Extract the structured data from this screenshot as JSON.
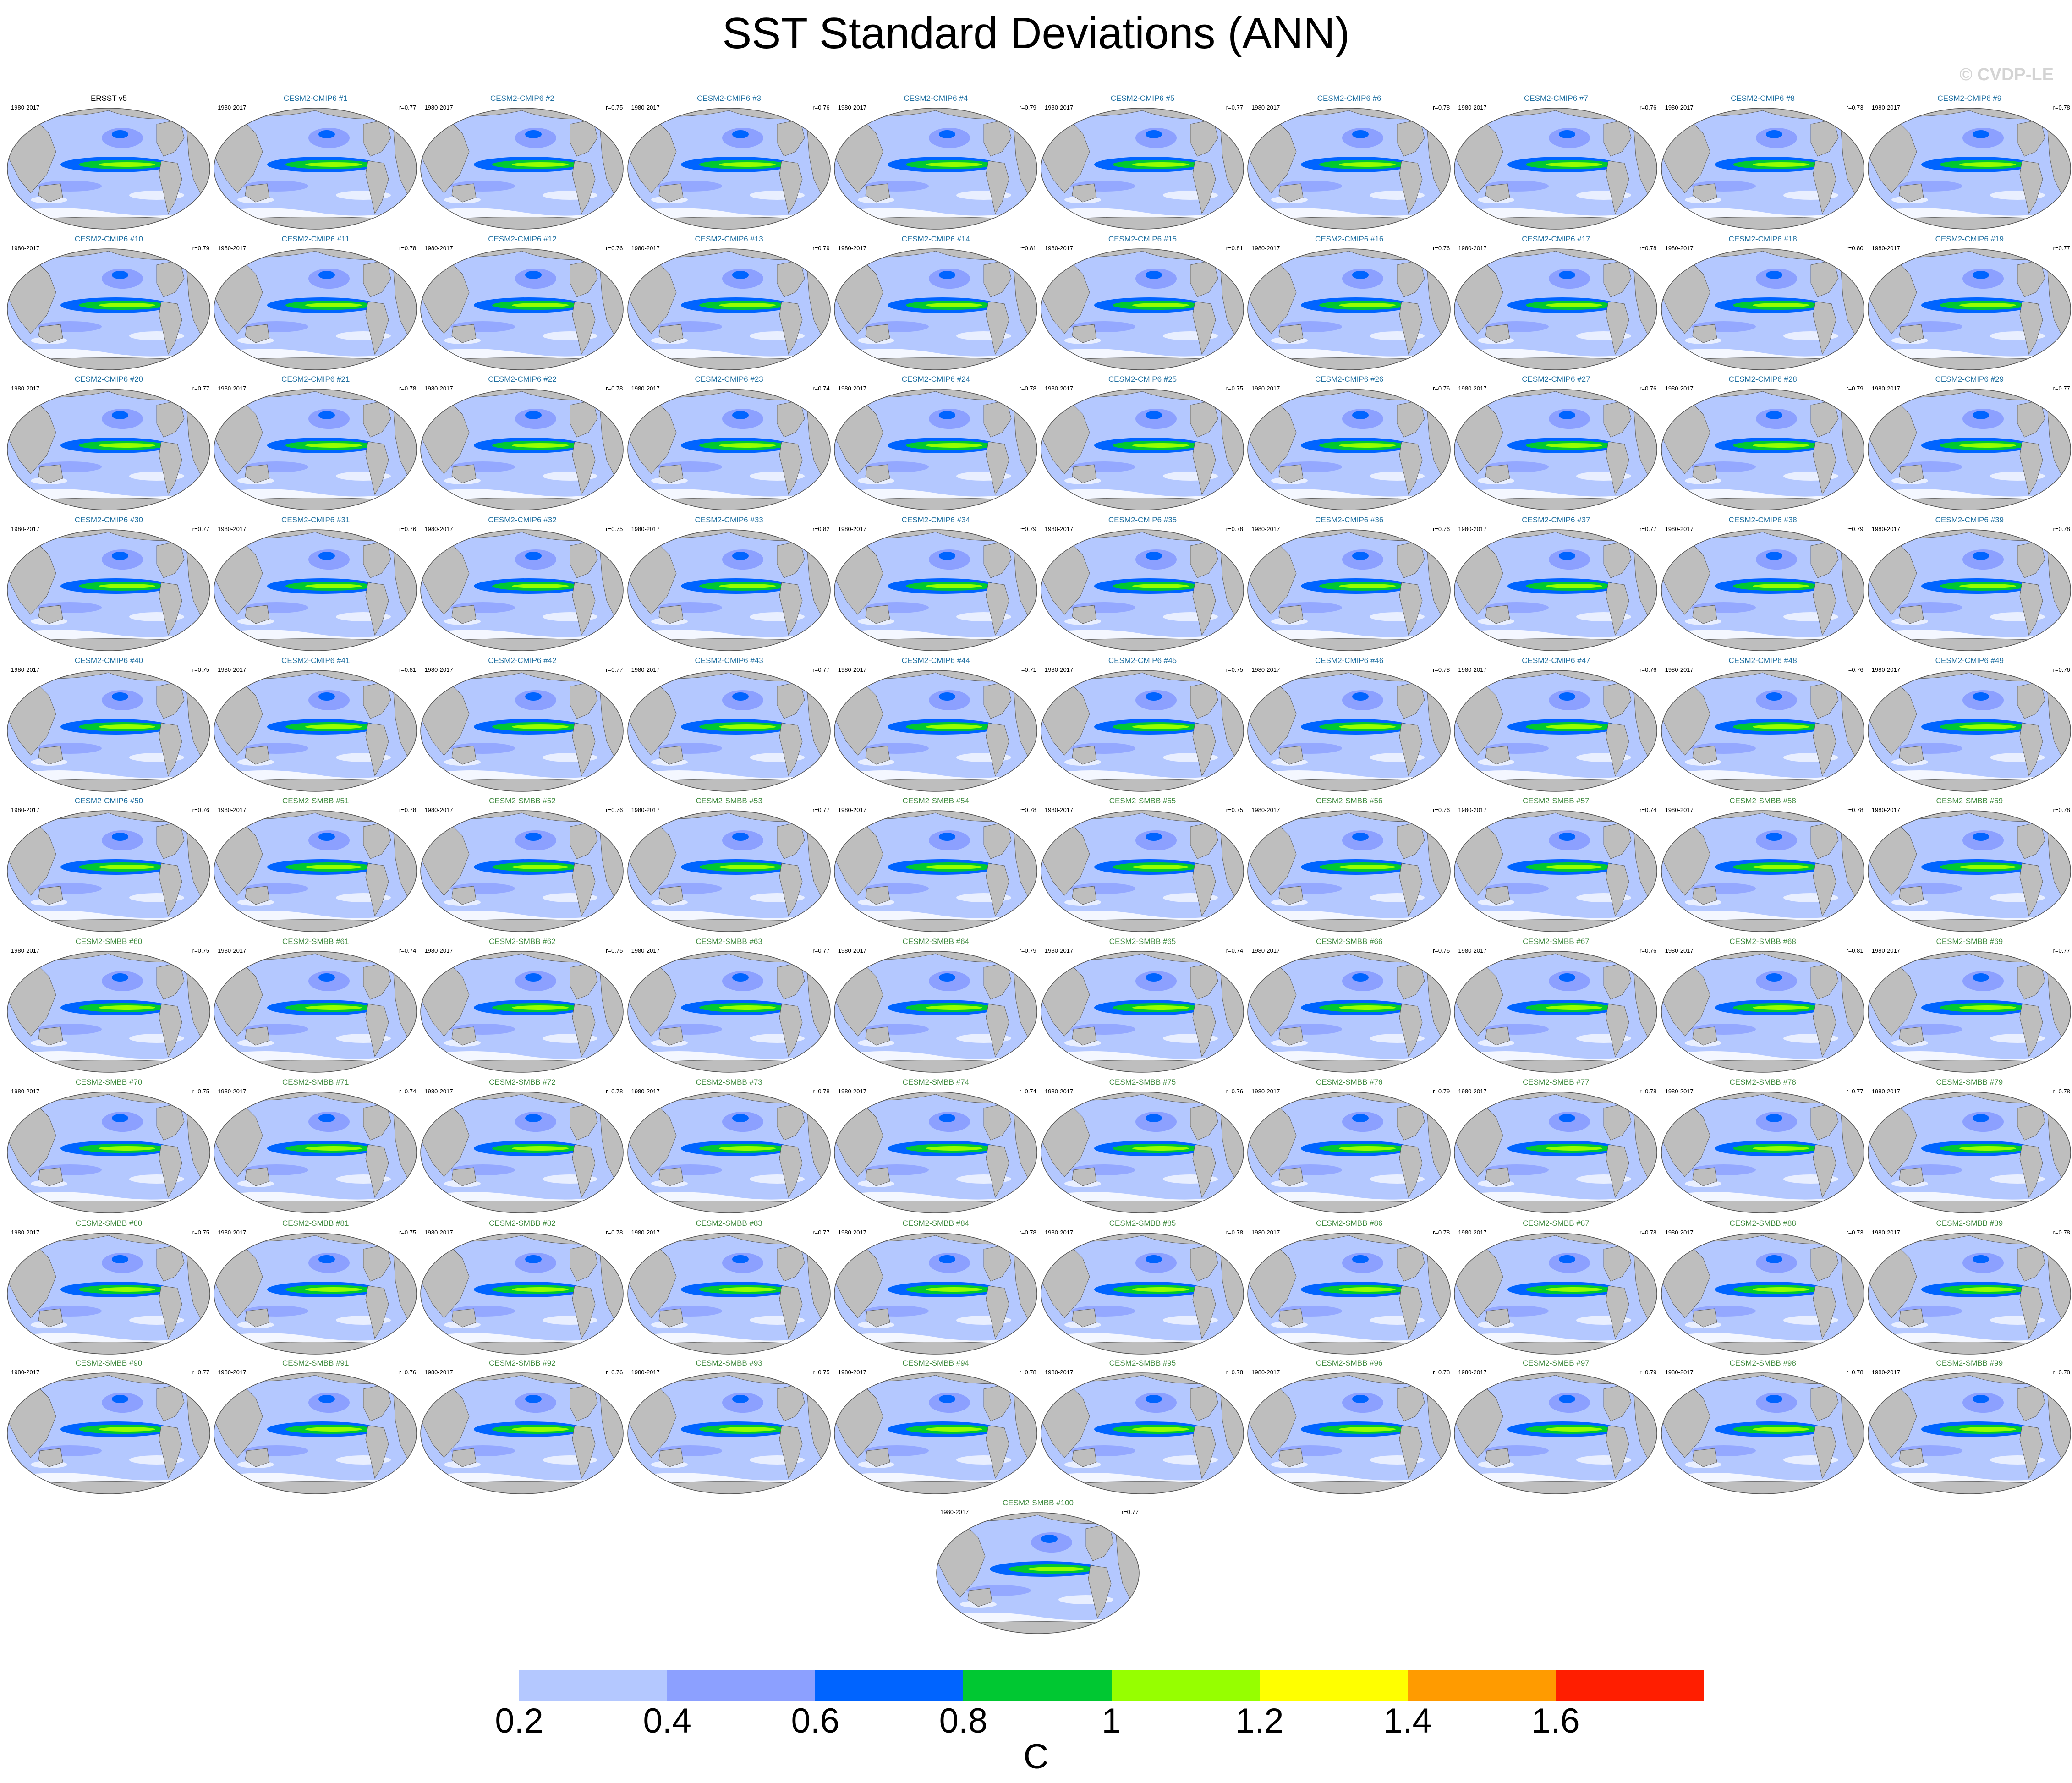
{
  "title": "SST Standard Deviations (ANN)",
  "watermark": "© CVDP-LE",
  "units": "C",
  "colors": {
    "cmip6_title": "#1f6fa0",
    "smbb_title": "#3f8a3f",
    "obs_title": "#000000",
    "land": "#bebebe",
    "ocean_low": "#b4c8ff"
  },
  "panels": [
    {
      "name": "ERSST v5",
      "period": "1980-2017",
      "r": ""
    },
    {
      "name": "CESM2-CMIP6 #1",
      "period": "1980-2017",
      "r": "r=0.77"
    },
    {
      "name": "CESM2-CMIP6 #2",
      "period": "1980-2017",
      "r": "r=0.75"
    },
    {
      "name": "CESM2-CMIP6 #3",
      "period": "1980-2017",
      "r": "r=0.76"
    },
    {
      "name": "CESM2-CMIP6 #4",
      "period": "1980-2017",
      "r": "r=0.79"
    },
    {
      "name": "CESM2-CMIP6 #5",
      "period": "1980-2017",
      "r": "r=0.77"
    },
    {
      "name": "CESM2-CMIP6 #6",
      "period": "1980-2017",
      "r": "r=0.78"
    },
    {
      "name": "CESM2-CMIP6 #7",
      "period": "1980-2017",
      "r": "r=0.76"
    },
    {
      "name": "CESM2-CMIP6 #8",
      "period": "1980-2017",
      "r": "r=0.73"
    },
    {
      "name": "CESM2-CMIP6 #9",
      "period": "1980-2017",
      "r": "r=0.78"
    },
    {
      "name": "CESM2-CMIP6 #10",
      "period": "1980-2017",
      "r": "r=0.79"
    },
    {
      "name": "CESM2-CMIP6 #11",
      "period": "1980-2017",
      "r": "r=0.78"
    },
    {
      "name": "CESM2-CMIP6 #12",
      "period": "1980-2017",
      "r": "r=0.76"
    },
    {
      "name": "CESM2-CMIP6 #13",
      "period": "1980-2017",
      "r": "r=0.79"
    },
    {
      "name": "CESM2-CMIP6 #14",
      "period": "1980-2017",
      "r": "r=0.81"
    },
    {
      "name": "CESM2-CMIP6 #15",
      "period": "1980-2017",
      "r": "r=0.81"
    },
    {
      "name": "CESM2-CMIP6 #16",
      "period": "1980-2017",
      "r": "r=0.76"
    },
    {
      "name": "CESM2-CMIP6 #17",
      "period": "1980-2017",
      "r": "r=0.78"
    },
    {
      "name": "CESM2-CMIP6 #18",
      "period": "1980-2017",
      "r": "r=0.80"
    },
    {
      "name": "CESM2-CMIP6 #19",
      "period": "1980-2017",
      "r": "r=0.77"
    },
    {
      "name": "CESM2-CMIP6 #20",
      "period": "1980-2017",
      "r": "r=0.77"
    },
    {
      "name": "CESM2-CMIP6 #21",
      "period": "1980-2017",
      "r": "r=0.78"
    },
    {
      "name": "CESM2-CMIP6 #22",
      "period": "1980-2017",
      "r": "r=0.78"
    },
    {
      "name": "CESM2-CMIP6 #23",
      "period": "1980-2017",
      "r": "r=0.74"
    },
    {
      "name": "CESM2-CMIP6 #24",
      "period": "1980-2017",
      "r": "r=0.78"
    },
    {
      "name": "CESM2-CMIP6 #25",
      "period": "1980-2017",
      "r": "r=0.75"
    },
    {
      "name": "CESM2-CMIP6 #26",
      "period": "1980-2017",
      "r": "r=0.76"
    },
    {
      "name": "CESM2-CMIP6 #27",
      "period": "1980-2017",
      "r": "r=0.76"
    },
    {
      "name": "CESM2-CMIP6 #28",
      "period": "1980-2017",
      "r": "r=0.79"
    },
    {
      "name": "CESM2-CMIP6 #29",
      "period": "1980-2017",
      "r": "r=0.77"
    },
    {
      "name": "CESM2-CMIP6 #30",
      "period": "1980-2017",
      "r": "r=0.77"
    },
    {
      "name": "CESM2-CMIP6 #31",
      "period": "1980-2017",
      "r": "r=0.76"
    },
    {
      "name": "CESM2-CMIP6 #32",
      "period": "1980-2017",
      "r": "r=0.75"
    },
    {
      "name": "CESM2-CMIP6 #33",
      "period": "1980-2017",
      "r": "r=0.82"
    },
    {
      "name": "CESM2-CMIP6 #34",
      "period": "1980-2017",
      "r": "r=0.79"
    },
    {
      "name": "CESM2-CMIP6 #35",
      "period": "1980-2017",
      "r": "r=0.78"
    },
    {
      "name": "CESM2-CMIP6 #36",
      "period": "1980-2017",
      "r": "r=0.76"
    },
    {
      "name": "CESM2-CMIP6 #37",
      "period": "1980-2017",
      "r": "r=0.77"
    },
    {
      "name": "CESM2-CMIP6 #38",
      "period": "1980-2017",
      "r": "r=0.79"
    },
    {
      "name": "CESM2-CMIP6 #39",
      "period": "1980-2017",
      "r": "r=0.78"
    },
    {
      "name": "CESM2-CMIP6 #40",
      "period": "1980-2017",
      "r": "r=0.75"
    },
    {
      "name": "CESM2-CMIP6 #41",
      "period": "1980-2017",
      "r": "r=0.81"
    },
    {
      "name": "CESM2-CMIP6 #42",
      "period": "1980-2017",
      "r": "r=0.77"
    },
    {
      "name": "CESM2-CMIP6 #43",
      "period": "1980-2017",
      "r": "r=0.77"
    },
    {
      "name": "CESM2-CMIP6 #44",
      "period": "1980-2017",
      "r": "r=0.71"
    },
    {
      "name": "CESM2-CMIP6 #45",
      "period": "1980-2017",
      "r": "r=0.75"
    },
    {
      "name": "CESM2-CMIP6 #46",
      "period": "1980-2017",
      "r": "r=0.78"
    },
    {
      "name": "CESM2-CMIP6 #47",
      "period": "1980-2017",
      "r": "r=0.76"
    },
    {
      "name": "CESM2-CMIP6 #48",
      "period": "1980-2017",
      "r": "r=0.76"
    },
    {
      "name": "CESM2-CMIP6 #49",
      "period": "1980-2017",
      "r": "r=0.76"
    },
    {
      "name": "CESM2-CMIP6 #50",
      "period": "1980-2017",
      "r": "r=0.76"
    },
    {
      "name": "CESM2-SMBB #51",
      "period": "1980-2017",
      "r": "r=0.78"
    },
    {
      "name": "CESM2-SMBB #52",
      "period": "1980-2017",
      "r": "r=0.76"
    },
    {
      "name": "CESM2-SMBB #53",
      "period": "1980-2017",
      "r": "r=0.77"
    },
    {
      "name": "CESM2-SMBB #54",
      "period": "1980-2017",
      "r": "r=0.78"
    },
    {
      "name": "CESM2-SMBB #55",
      "period": "1980-2017",
      "r": "r=0.75"
    },
    {
      "name": "CESM2-SMBB #56",
      "period": "1980-2017",
      "r": "r=0.76"
    },
    {
      "name": "CESM2-SMBB #57",
      "period": "1980-2017",
      "r": "r=0.74"
    },
    {
      "name": "CESM2-SMBB #58",
      "period": "1980-2017",
      "r": "r=0.78"
    },
    {
      "name": "CESM2-SMBB #59",
      "period": "1980-2017",
      "r": "r=0.78"
    },
    {
      "name": "CESM2-SMBB #60",
      "period": "1980-2017",
      "r": "r=0.75"
    },
    {
      "name": "CESM2-SMBB #61",
      "period": "1980-2017",
      "r": "r=0.74"
    },
    {
      "name": "CESM2-SMBB #62",
      "period": "1980-2017",
      "r": "r=0.75"
    },
    {
      "name": "CESM2-SMBB #63",
      "period": "1980-2017",
      "r": "r=0.77"
    },
    {
      "name": "CESM2-SMBB #64",
      "period": "1980-2017",
      "r": "r=0.79"
    },
    {
      "name": "CESM2-SMBB #65",
      "period": "1980-2017",
      "r": "r=0.74"
    },
    {
      "name": "CESM2-SMBB #66",
      "period": "1980-2017",
      "r": "r=0.76"
    },
    {
      "name": "CESM2-SMBB #67",
      "period": "1980-2017",
      "r": "r=0.76"
    },
    {
      "name": "CESM2-SMBB #68",
      "period": "1980-2017",
      "r": "r=0.81"
    },
    {
      "name": "CESM2-SMBB #69",
      "period": "1980-2017",
      "r": "r=0.77"
    },
    {
      "name": "CESM2-SMBB #70",
      "period": "1980-2017",
      "r": "r=0.75"
    },
    {
      "name": "CESM2-SMBB #71",
      "period": "1980-2017",
      "r": "r=0.74"
    },
    {
      "name": "CESM2-SMBB #72",
      "period": "1980-2017",
      "r": "r=0.78"
    },
    {
      "name": "CESM2-SMBB #73",
      "period": "1980-2017",
      "r": "r=0.78"
    },
    {
      "name": "CESM2-SMBB #74",
      "period": "1980-2017",
      "r": "r=0.74"
    },
    {
      "name": "CESM2-SMBB #75",
      "period": "1980-2017",
      "r": "r=0.76"
    },
    {
      "name": "CESM2-SMBB #76",
      "period": "1980-2017",
      "r": "r=0.79"
    },
    {
      "name": "CESM2-SMBB #77",
      "period": "1980-2017",
      "r": "r=0.78"
    },
    {
      "name": "CESM2-SMBB #78",
      "period": "1980-2017",
      "r": "r=0.77"
    },
    {
      "name": "CESM2-SMBB #79",
      "period": "1980-2017",
      "r": "r=0.78"
    },
    {
      "name": "CESM2-SMBB #80",
      "period": "1980-2017",
      "r": "r=0.75"
    },
    {
      "name": "CESM2-SMBB #81",
      "period": "1980-2017",
      "r": "r=0.75"
    },
    {
      "name": "CESM2-SMBB #82",
      "period": "1980-2017",
      "r": "r=0.78"
    },
    {
      "name": "CESM2-SMBB #83",
      "period": "1980-2017",
      "r": "r=0.77"
    },
    {
      "name": "CESM2-SMBB #84",
      "period": "1980-2017",
      "r": "r=0.78"
    },
    {
      "name": "CESM2-SMBB #85",
      "period": "1980-2017",
      "r": "r=0.78"
    },
    {
      "name": "CESM2-SMBB #86",
      "period": "1980-2017",
      "r": "r=0.78"
    },
    {
      "name": "CESM2-SMBB #87",
      "period": "1980-2017",
      "r": "r=0.78"
    },
    {
      "name": "CESM2-SMBB #88",
      "period": "1980-2017",
      "r": "r=0.73"
    },
    {
      "name": "CESM2-SMBB #89",
      "period": "1980-2017",
      "r": "r=0.78"
    },
    {
      "name": "CESM2-SMBB #90",
      "period": "1980-2017",
      "r": "r=0.77"
    },
    {
      "name": "CESM2-SMBB #91",
      "period": "1980-2017",
      "r": "r=0.76"
    },
    {
      "name": "CESM2-SMBB #92",
      "period": "1980-2017",
      "r": "r=0.76"
    },
    {
      "name": "CESM2-SMBB #93",
      "period": "1980-2017",
      "r": "r=0.75"
    },
    {
      "name": "CESM2-SMBB #94",
      "period": "1980-2017",
      "r": "r=0.78"
    },
    {
      "name": "CESM2-SMBB #95",
      "period": "1980-2017",
      "r": "r=0.78"
    },
    {
      "name": "CESM2-SMBB #96",
      "period": "1980-2017",
      "r": "r=0.78"
    },
    {
      "name": "CESM2-SMBB #97",
      "period": "1980-2017",
      "r": "r=0.79"
    },
    {
      "name": "CESM2-SMBB #98",
      "period": "1980-2017",
      "r": "r=0.78"
    },
    {
      "name": "CESM2-SMBB #99",
      "period": "1980-2017",
      "r": "r=0.78"
    },
    {
      "name": "CESM2-SMBB #100",
      "period": "1980-2017",
      "r": "r=0.77"
    }
  ],
  "colorbar": {
    "colors": [
      "#ffffff",
      "#b4c8ff",
      "#8ca0ff",
      "#0064ff",
      "#00c832",
      "#96ff00",
      "#ffff00",
      "#ff9b00",
      "#ff1e00"
    ],
    "labels": [
      "0.2",
      "0.4",
      "0.6",
      "0.8",
      "1",
      "1.2",
      "1.4",
      "1.6"
    ]
  }
}
